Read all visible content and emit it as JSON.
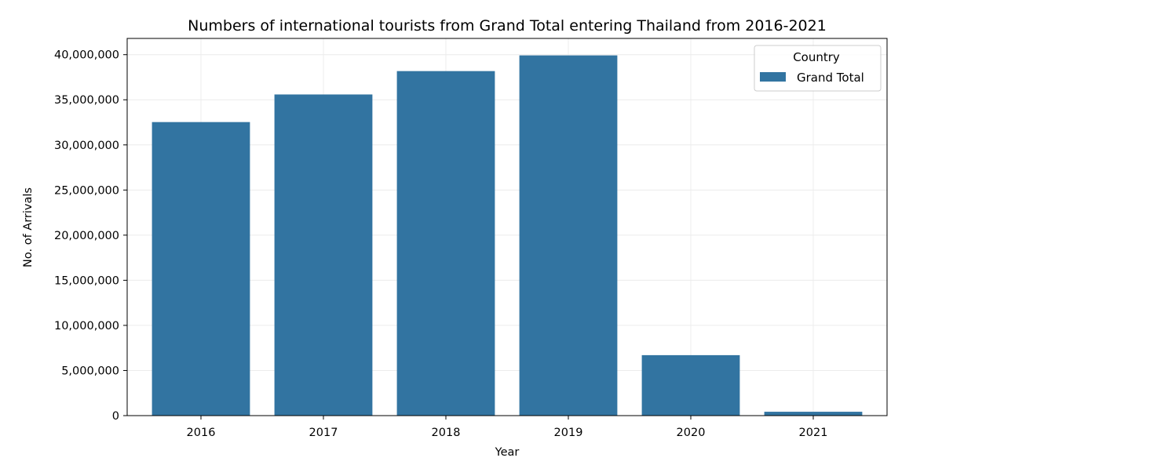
{
  "chart_data": {
    "type": "bar",
    "title": "Numbers of international tourists from Grand Total entering Thailand from 2016-2021",
    "xlabel": "Year",
    "ylabel": "No. of Arrivals",
    "categories": [
      "2016",
      "2017",
      "2018",
      "2019",
      "2020",
      "2021"
    ],
    "series": [
      {
        "name": "Grand Total",
        "values": [
          32530000,
          35590000,
          38180000,
          39920000,
          6700000,
          428000
        ]
      }
    ],
    "ylim": [
      0,
      41800000
    ],
    "yticks": [
      0,
      5000000,
      10000000,
      15000000,
      20000000,
      25000000,
      30000000,
      35000000,
      40000000
    ],
    "ytick_labels": [
      "0",
      "5,000,000",
      "10,000,000",
      "15,000,000",
      "20,000,000",
      "25,000,000",
      "30,000,000",
      "35,000,000",
      "40,000,000"
    ],
    "grid": true,
    "legend": {
      "title": "Country",
      "placement": "upper-right"
    },
    "colors": {
      "bar": "#3274a1",
      "grid": "#ececec",
      "axis": "#000000"
    }
  }
}
